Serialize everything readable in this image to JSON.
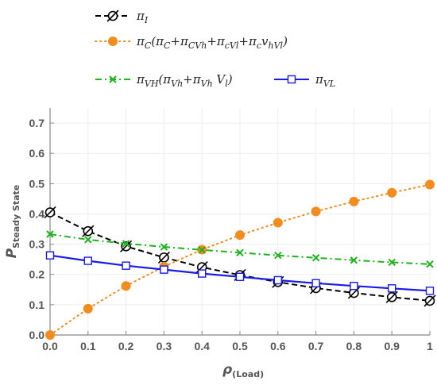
{
  "chart_data": {
    "type": "line",
    "xlabel": "ρ",
    "xlabel_sub": "(Load)",
    "ylabel": "P",
    "ylabel_sub": "Steady State",
    "xlim": [
      0,
      1
    ],
    "ylim": [
      0,
      0.75
    ],
    "grid": true,
    "legend_placement": "top",
    "x_ticks": [
      "0.0",
      "0.1",
      "0.2",
      "0.3",
      "0.4",
      "0.5",
      "0.6",
      "0.7",
      "0.8",
      "0.9",
      "1"
    ],
    "y_ticks": [
      "0.0",
      "0.1",
      "0.2",
      "0.3",
      "0.4",
      "0.5",
      "0.6",
      "0.7"
    ],
    "x": [
      0,
      0.1,
      0.2,
      0.3,
      0.4,
      0.5,
      0.6,
      0.7,
      0.8,
      0.9,
      1.0
    ],
    "series": [
      {
        "name": "π_I",
        "legend": [
          {
            "t": "π"
          },
          {
            "t": "I",
            "sub": true
          }
        ],
        "color": "#000000",
        "line": "dashed",
        "marker": "slashed-circle",
        "values": [
          0.405,
          0.343,
          0.293,
          0.256,
          0.224,
          0.198,
          0.175,
          0.155,
          0.139,
          0.125,
          0.113
        ]
      },
      {
        "name": "π_C(π_C+π_CVh+π_cVl+π_cvhVl)",
        "legend": [
          {
            "t": "π"
          },
          {
            "t": "C",
            "sub": true
          },
          {
            "t": "(π"
          },
          {
            "t": "C",
            "sub": true
          },
          {
            "t": "+π"
          },
          {
            "t": "CV",
            "sub": true
          },
          {
            "t": "h",
            "sub": true
          },
          {
            "t": "+π"
          },
          {
            "t": "cV",
            "sub": true
          },
          {
            "t": "l",
            "sub": true
          },
          {
            "t": "+π"
          },
          {
            "t": "c",
            "sub": true
          },
          {
            "t": "v"
          },
          {
            "t": "h",
            "sub": true
          },
          {
            "t": "V",
            "sub": true
          },
          {
            "t": "l",
            "sub": true
          },
          {
            "t": ")"
          }
        ],
        "color": "#F28C1E",
        "line": "dotted",
        "marker": "filled-circle",
        "values": [
          0.0,
          0.087,
          0.162,
          0.226,
          0.282,
          0.33,
          0.371,
          0.408,
          0.441,
          0.47,
          0.497
        ]
      },
      {
        "name": "π_VH(π_Vh+π_Vh Vl)",
        "legend": [
          {
            "t": "π"
          },
          {
            "t": "V",
            "sub": true
          },
          {
            "t": "H",
            "sub": true
          },
          {
            "t": "(π"
          },
          {
            "t": "V",
            "sub": true
          },
          {
            "t": "h",
            "sub": true
          },
          {
            "t": "+π"
          },
          {
            "t": "V",
            "sub": true
          },
          {
            "t": "h",
            "sub": true
          },
          {
            "t": " V"
          },
          {
            "t": "l",
            "sub": true
          },
          {
            "t": ")"
          }
        ],
        "color": "#1FB21F",
        "line": "dash-dot",
        "marker": "cross",
        "values": [
          0.333,
          0.315,
          0.302,
          0.291,
          0.281,
          0.272,
          0.263,
          0.255,
          0.247,
          0.24,
          0.234
        ]
      },
      {
        "name": "π_VL",
        "legend": [
          {
            "t": "π"
          },
          {
            "t": "V",
            "sub": true
          },
          {
            "t": "L",
            "sub": true
          }
        ],
        "color": "#1A1AE6",
        "line": "solid",
        "marker": "open-square",
        "values": [
          0.263,
          0.245,
          0.229,
          0.216,
          0.203,
          0.192,
          0.181,
          0.171,
          0.162,
          0.154,
          0.146
        ]
      }
    ]
  }
}
